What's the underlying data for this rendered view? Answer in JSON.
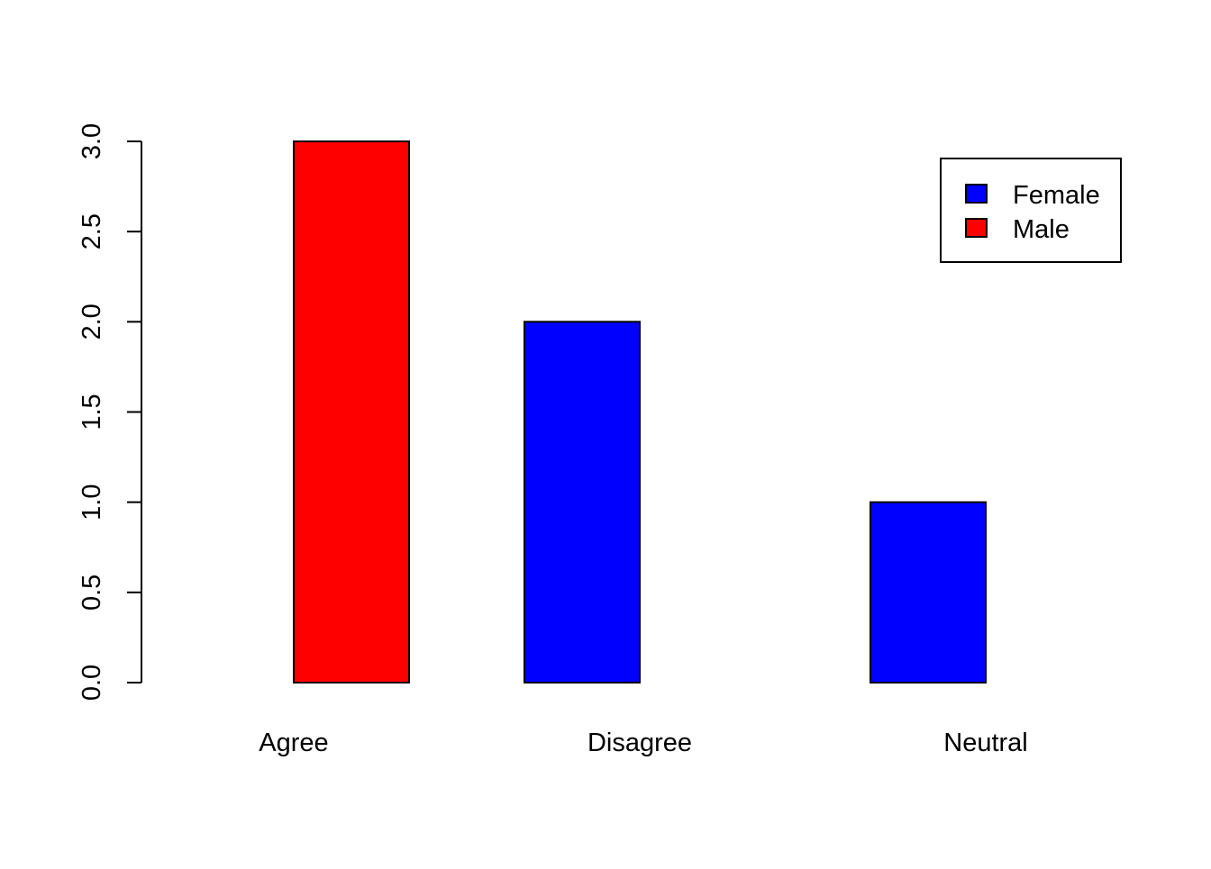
{
  "chart_data": {
    "type": "bar",
    "barmode": "grouped",
    "categories": [
      "Agree",
      "Disagree",
      "Neutral"
    ],
    "series": [
      {
        "name": "Female",
        "values": [
          0,
          2,
          1
        ]
      },
      {
        "name": "Male",
        "values": [
          3,
          0,
          0
        ]
      }
    ],
    "colors": {
      "Female": "#0000ff",
      "Male": "#ff0000"
    },
    "ylim": [
      0,
      3
    ],
    "yticks": [
      "0.0",
      "0.5",
      "1.0",
      "1.5",
      "2.0",
      "2.5",
      "3.0"
    ],
    "ytick_values": [
      0,
      0.5,
      1,
      1.5,
      2,
      2.5,
      3
    ],
    "title": "",
    "xlabel": "",
    "ylabel": "",
    "legend": {
      "position": "top-right",
      "entries": [
        "Female",
        "Male"
      ]
    },
    "grid": false
  }
}
